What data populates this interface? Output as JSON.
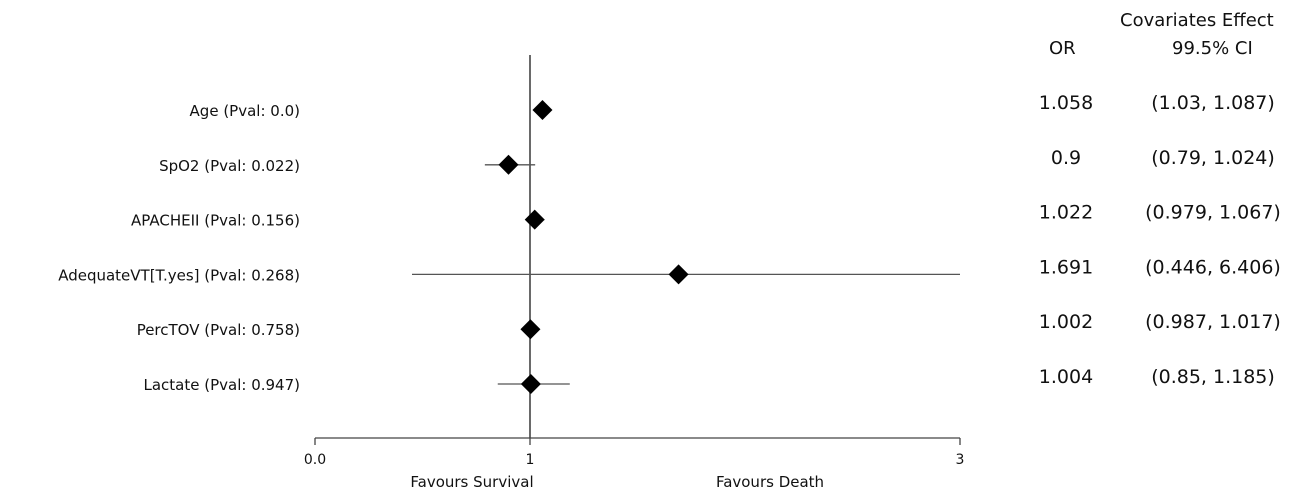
{
  "chart_data": {
    "type": "forest",
    "title": "",
    "xlabel": "",
    "xlim": [
      0.0,
      3
    ],
    "xticks": [
      "0.0",
      "1",
      "3"
    ],
    "reference_line": 1,
    "favour_labels": {
      "left": "Favours Survival",
      "right": "Favours Death"
    },
    "table_header": {
      "col_or": "OR",
      "col_ci_line1": "Covariates Effect",
      "col_ci_line2": "99.5% CI"
    },
    "rows": [
      {
        "label": "Age (Pval: 0.0)",
        "or": 1.058,
        "ci": [
          1.03,
          1.087
        ],
        "or_text": "1.058",
        "ci_text": "(1.03, 1.087)"
      },
      {
        "label": "SpO2 (Pval: 0.022)",
        "or": 0.9,
        "ci": [
          0.79,
          1.024
        ],
        "or_text": "0.9",
        "ci_text": "(0.79, 1.024)"
      },
      {
        "label": "APACHEII (Pval: 0.156)",
        "or": 1.022,
        "ci": [
          0.979,
          1.067
        ],
        "or_text": "1.022",
        "ci_text": "(0.979, 1.067)"
      },
      {
        "label": "AdequateVT[T.yes] (Pval: 0.268)",
        "or": 1.691,
        "ci": [
          0.446,
          6.406
        ],
        "or_text": "1.691",
        "ci_text": "(0.446, 6.406)"
      },
      {
        "label": "PercTOV (Pval: 0.758)",
        "or": 1.002,
        "ci": [
          0.987,
          1.017
        ],
        "or_text": "1.002",
        "ci_text": "(0.987, 1.017)"
      },
      {
        "label": "Lactate (Pval: 0.947)",
        "or": 1.004,
        "ci": [
          0.85,
          1.185
        ],
        "or_text": "1.004",
        "ci_text": "(0.85, 1.185)"
      }
    ],
    "colors": {
      "marker": "#000000",
      "ci_line": "#555555",
      "axis": "#444444"
    }
  }
}
